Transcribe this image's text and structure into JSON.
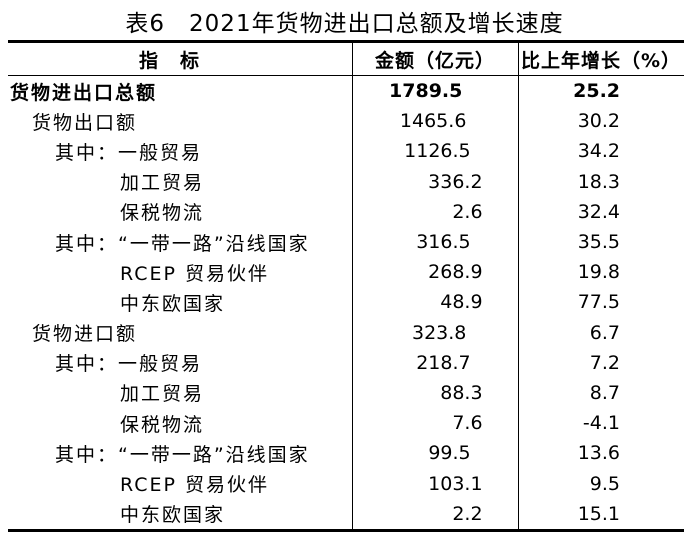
{
  "title": "表6　2021年货物进出口总额及增长速度",
  "headers": {
    "indicator": "指标",
    "amount": "金额（亿元）",
    "growth": "比上年增长（%）"
  },
  "rows": [
    {
      "name": "货物进出口总额",
      "level": 0,
      "bold": true,
      "amount": "1789.5",
      "growth": "25.2"
    },
    {
      "name": "货物出口额",
      "level": 1,
      "amount": "1465.6",
      "growth": "30.2"
    },
    {
      "name": "其中：一般贸易",
      "level": 2,
      "amount": "1126.5",
      "growth": "34.2"
    },
    {
      "name": "加工贸易",
      "level": 3,
      "amount": "336.2",
      "growth": "18.3"
    },
    {
      "name": "保税物流",
      "level": 3,
      "amount": "2.6",
      "growth": "32.4"
    },
    {
      "name": "其中：“一带一路”沿线国家",
      "level": 2,
      "amount": "316.5",
      "growth": "35.5"
    },
    {
      "name": "RCEP 贸易伙伴",
      "level": 3,
      "amount": "268.9",
      "growth": "19.8"
    },
    {
      "name": "中东欧国家",
      "level": 3,
      "amount": "48.9",
      "growth": "77.5"
    },
    {
      "name": "货物进口额",
      "level": 1,
      "amount": "323.8",
      "growth": "6.7"
    },
    {
      "name": "其中：一般贸易",
      "level": 2,
      "amount": "218.7",
      "growth": "7.2"
    },
    {
      "name": "加工贸易",
      "level": 3,
      "amount": "88.3",
      "growth": "8.7"
    },
    {
      "name": "保税物流",
      "level": 3,
      "amount": "7.6",
      "growth": "-4.1"
    },
    {
      "name": "其中：“一带一路”沿线国家",
      "level": 2,
      "amount": "99.5",
      "growth": "13.6"
    },
    {
      "name": "RCEP 贸易伙伴",
      "level": 3,
      "amount": "103.1",
      "growth": "9.5"
    },
    {
      "name": "中东欧国家",
      "level": 3,
      "amount": "2.2",
      "growth": "15.1"
    }
  ]
}
